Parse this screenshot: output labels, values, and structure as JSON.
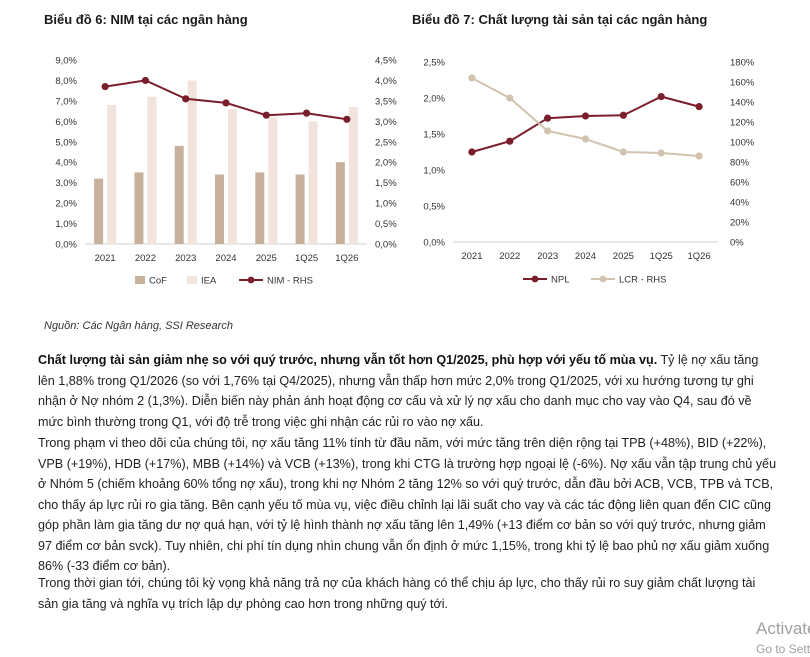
{
  "titles": {
    "chart6": "Biểu đồ 6: NIM tại các ngân hàng",
    "chart7": "Biểu đồ 7: Chất lượng tài sản tại các ngân hàng"
  },
  "source": "Nguồn: Các Ngân hàng, SSI Research",
  "chart_data": [
    {
      "type": "bar",
      "title": "Biểu đồ 6: NIM tại các ngân hàng",
      "categories": [
        "2021",
        "2022",
        "2023",
        "2024",
        "2025",
        "1Q25",
        "1Q26"
      ],
      "left_axis": {
        "ticks": [
          "0,0%",
          "1,0%",
          "2,0%",
          "3,0%",
          "4,0%",
          "5,0%",
          "6,0%",
          "7,0%",
          "8,0%",
          "9,0%"
        ],
        "ylim": [
          0,
          9
        ]
      },
      "right_axis": {
        "ticks": [
          "0,0%",
          "0,5%",
          "1,0%",
          "1,5%",
          "2,0%",
          "2,5%",
          "3,0%",
          "3,5%",
          "4,0%",
          "4,5%"
        ],
        "ylim": [
          0,
          4.5
        ]
      },
      "series": [
        {
          "name": "CoF",
          "kind": "bar",
          "axis": "left",
          "color": "#c7b19c",
          "values": [
            3.2,
            3.5,
            4.8,
            3.4,
            3.5,
            3.4,
            4.0
          ]
        },
        {
          "name": "IEA",
          "kind": "bar",
          "axis": "left",
          "color": "#f2e4dc",
          "values": [
            6.8,
            7.2,
            8.0,
            6.6,
            6.2,
            6.0,
            6.7
          ]
        },
        {
          "name": "NIM - RHS",
          "kind": "line",
          "axis": "right",
          "color": "#7b1e2b",
          "values": [
            3.85,
            4.0,
            3.55,
            3.45,
            3.15,
            3.2,
            3.05
          ]
        }
      ],
      "legend": [
        "CoF",
        "IEA",
        "NIM - RHS"
      ],
      "legend_position": "bottom",
      "grid": false
    },
    {
      "type": "line",
      "title": "Biểu đồ 7: Chất lượng tài sản tại các ngân hàng",
      "categories": [
        "2021",
        "2022",
        "2023",
        "2024",
        "2025",
        "1Q25",
        "1Q26"
      ],
      "left_axis": {
        "ticks": [
          "0,0%",
          "0,5%",
          "1,0%",
          "1,5%",
          "2,0%",
          "2,5%"
        ],
        "ylim": [
          0,
          2.5
        ]
      },
      "right_axis": {
        "ticks": [
          "0%",
          "20%",
          "40%",
          "60%",
          "80%",
          "100%",
          "120%",
          "140%",
          "160%",
          "180%"
        ],
        "ylim": [
          0,
          180
        ]
      },
      "series": [
        {
          "name": "NPL",
          "kind": "line",
          "axis": "left",
          "color": "#7b1e2b",
          "values": [
            1.25,
            1.4,
            1.72,
            1.75,
            1.76,
            2.02,
            1.88
          ]
        },
        {
          "name": "LCR - RHS",
          "kind": "line",
          "axis": "right",
          "color": "#d1c3b0",
          "values": [
            164,
            144,
            111,
            103,
            90,
            89,
            86
          ]
        }
      ],
      "legend": [
        "NPL",
        "LCR - RHS"
      ],
      "legend_position": "bottom",
      "grid": false
    }
  ],
  "paragraphs": [
    {
      "lead": "Chất lượng tài sản giảm nhẹ so với quý trước, nhưng vẫn tốt hơn Q1/2025, phù hợp với yếu tố mùa vụ.",
      "text": " Tỷ lệ nợ xấu tăng lên 1,88% trong Q1/2026 (so với 1,76% tại Q4/2025), nhưng vẫn thấp hơn mức 2,0% trong Q1/2025, với xu hướng tương tự ghi nhận ở Nợ nhóm 2 (1,3%). Diễn biến này phản ánh hoạt động cơ cấu và xử lý nợ xấu cho danh mục cho vay vào Q4, sau đó về mức bình thường trong Q1, với độ trễ trong việc ghi nhận các rủi ro vào nợ xấu."
    },
    {
      "lead": "",
      "text": "Trong phạm vi theo dõi của chúng tôi, nợ xấu tăng 11% tính từ đầu năm, với mức tăng trên diện rộng tại TPB (+48%), BID (+22%), VPB (+19%), HDB (+17%), MBB (+14%) và VCB (+13%), trong khi CTG là trường hợp ngoại lệ (-6%). Nợ xấu vẫn tập trung chủ yếu ở Nhóm 5 (chiếm khoảng 60% tổng nợ xấu), trong khi nợ Nhóm 2 tăng 12% so với quý trước, dẫn đầu bởi ACB, VCB, TPB và TCB, cho thấy áp lực rủi ro gia tăng. Bên cạnh yếu tố mùa vụ, việc điều chỉnh lại lãi suất cho vay và các tác động liên quan đến CIC cũng góp phần làm gia tăng dư nợ quá hạn, với tỷ lệ hình thành nợ xấu tăng lên 1,49% (+13 điểm cơ bản so với quý trước, nhưng giảm 97 điểm cơ bản svck). Tuy nhiên, chi phí tín dụng nhìn chung vẫn ổn định ở mức 1,15%, trong khi tỷ lệ bao phủ nợ xấu giảm xuống 86% (-33 điểm cơ bản)."
    },
    {
      "lead": "",
      "text": "Trong thời gian tới, chúng tôi kỳ vọng khả năng trả nợ của khách hàng có thể chịu áp lực, cho thấy rủi ro suy giảm chất lượng tài sản gia tăng và nghĩa vụ trích lập dự phòng cao hơn trong những quý tới."
    }
  ],
  "watermark": {
    "title": "Activate Windows",
    "subtitle": "Go to Settings to activate Windows."
  }
}
